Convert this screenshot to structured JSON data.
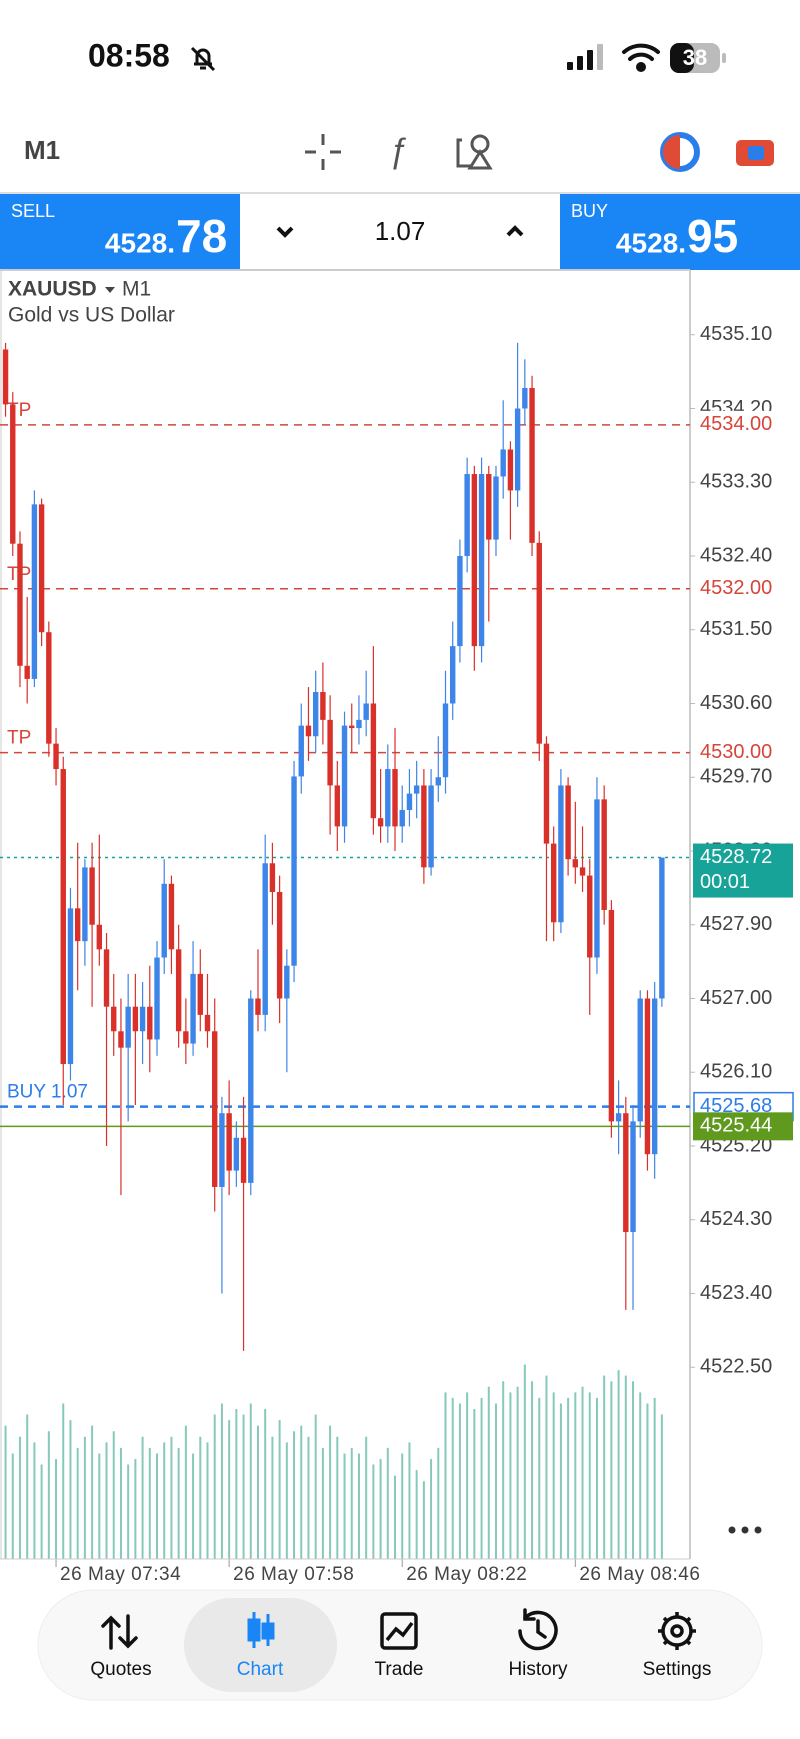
{
  "status_bar": {
    "time": "08:58",
    "battery": "38"
  },
  "toolbar": {
    "timeframe": "M1"
  },
  "trade_panel": {
    "sell": {
      "label": "SELL",
      "price_head": "4528.",
      "price_tail": "78"
    },
    "volume": "1.07",
    "buy": {
      "label": "BUY",
      "price_head": "4528.",
      "price_tail": "95"
    }
  },
  "chart_data": {
    "type": "candlestick",
    "symbol": "XAUUSD",
    "timeframe": "M1",
    "description": "Gold vs US Dollar",
    "open": [
      4534.92,
      4534.25,
      4532.55,
      4531.06,
      4530.9,
      4533.03,
      4531.47,
      4530.11,
      4529.8,
      4526.2,
      4528.1,
      4527.7,
      4528.6,
      4527.9,
      4527.6,
      4526.9,
      4526.6,
      4526.4,
      4526.9,
      4526.6,
      4526.9,
      4526.5,
      4527.5,
      4528.4,
      4527.6,
      4526.6,
      4526.45,
      4527.3,
      4526.8,
      4526.6,
      4524.7,
      4525.6,
      4524.9,
      4525.3,
      4524.75,
      4527.0,
      4526.8,
      4528.65,
      4528.3,
      4527.0,
      4527.4,
      4529.71,
      4530.33,
      4530.2,
      4530.74,
      4530.4,
      4529.6,
      4529.1,
      4530.33,
      4530.3,
      4530.4,
      4530.6,
      4529.2,
      4529.1,
      4529.8,
      4529.1,
      4529.3,
      4529.5,
      4529.6,
      4528.6,
      4529.6,
      4529.7,
      4530.6,
      4531.3,
      4532.4,
      4533.4,
      4531.3,
      4533.4,
      4532.6,
      4533.37,
      4533.7,
      4533.2,
      4534.2,
      4534.45,
      4532.56,
      4530.11,
      4528.89,
      4527.93,
      4529.6,
      4528.7,
      4528.6,
      4528.5,
      4527.5,
      4529.43,
      4528.08,
      4525.5,
      4525.6,
      4524.15,
      4525.5,
      4527.0,
      4525.1,
      4527.0
    ],
    "high": [
      4535.0,
      4534.4,
      4532.7,
      4531.9,
      4533.2,
      4533.1,
      4531.6,
      4530.3,
      4529.95,
      4528.35,
      4528.9,
      4528.7,
      4528.9,
      4529.0,
      4527.8,
      4527.3,
      4527.0,
      4527.3,
      4527.3,
      4527.2,
      4527.4,
      4527.7,
      4528.7,
      4528.5,
      4527.9,
      4527.0,
      4527.7,
      4527.6,
      4527.3,
      4527.0,
      4525.8,
      4526.0,
      4525.5,
      4525.8,
      4527.1,
      4527.6,
      4529.0,
      4528.9,
      4528.5,
      4527.6,
      4529.9,
      4530.6,
      4530.8,
      4531.0,
      4531.1,
      4530.7,
      4529.9,
      4530.5,
      4530.6,
      4530.7,
      4531.0,
      4531.3,
      4529.8,
      4530.1,
      4530.3,
      4529.6,
      4529.8,
      4529.9,
      4529.8,
      4529.8,
      4530.2,
      4531.0,
      4531.6,
      4532.6,
      4533.6,
      4533.5,
      4533.6,
      4533.5,
      4533.5,
      4534.3,
      4533.8,
      4535.0,
      4534.8,
      4534.6,
      4532.7,
      4530.2,
      4529.1,
      4529.8,
      4529.7,
      4529.4,
      4529.1,
      4528.7,
      4529.7,
      4529.6,
      4528.2,
      4526.0,
      4525.8,
      4525.7,
      4527.1,
      4527.1,
      4527.2,
      4528.72
    ],
    "low": [
      4534.1,
      4532.4,
      4530.8,
      4530.6,
      4530.8,
      4531.3,
      4529.95,
      4529.6,
      4525.7,
      4526.0,
      4527.1,
      4527.4,
      4526.9,
      4527.4,
      4525.2,
      4526.3,
      4524.6,
      4525.5,
      4525.7,
      4526.2,
      4526.1,
      4526.3,
      4527.3,
      4527.3,
      4526.4,
      4526.2,
      4526.3,
      4526.6,
      4526.4,
      4524.4,
      4523.4,
      4524.6,
      4524.7,
      4522.7,
      4524.6,
      4526.6,
      4526.6,
      4527.9,
      4526.7,
      4526.1,
      4527.2,
      4529.5,
      4529.9,
      4530.0,
      4530.1,
      4529.0,
      4528.8,
      4528.9,
      4530.0,
      4530.1,
      4530.2,
      4529.0,
      4528.9,
      4528.9,
      4528.8,
      4528.9,
      4529.1,
      4529.2,
      4528.4,
      4528.5,
      4529.4,
      4529.5,
      4530.4,
      4531.1,
      4532.2,
      4531.0,
      4531.1,
      4531.6,
      4532.4,
      4533.1,
      4532.6,
      4533.0,
      4534.0,
      4532.4,
      4529.9,
      4527.7,
      4527.7,
      4527.8,
      4528.5,
      4528.4,
      4528.3,
      4526.8,
      4527.3,
      4527.9,
      4525.3,
      4525.1,
      4523.2,
      4523.2,
      4525.3,
      4524.9,
      4524.8,
      4526.9
    ],
    "close": [
      4534.25,
      4532.55,
      4531.06,
      4530.9,
      4533.03,
      4531.47,
      4530.11,
      4529.8,
      4526.2,
      4528.1,
      4527.7,
      4528.6,
      4527.9,
      4527.6,
      4526.9,
      4526.6,
      4526.4,
      4526.9,
      4526.6,
      4526.9,
      4526.5,
      4527.5,
      4528.4,
      4527.6,
      4526.6,
      4526.45,
      4527.3,
      4526.8,
      4526.6,
      4524.7,
      4525.6,
      4524.9,
      4525.3,
      4524.75,
      4527.0,
      4526.8,
      4528.65,
      4528.3,
      4527.0,
      4527.4,
      4529.71,
      4530.33,
      4530.2,
      4530.74,
      4530.4,
      4529.6,
      4529.1,
      4530.33,
      4530.3,
      4530.4,
      4530.6,
      4529.2,
      4529.1,
      4529.8,
      4529.1,
      4529.3,
      4529.5,
      4529.6,
      4528.6,
      4529.6,
      4529.7,
      4530.6,
      4531.3,
      4532.4,
      4533.4,
      4531.3,
      4533.4,
      4532.6,
      4533.37,
      4533.7,
      4533.2,
      4534.2,
      4534.45,
      4532.56,
      4530.11,
      4528.89,
      4527.93,
      4529.6,
      4528.7,
      4528.6,
      4528.5,
      4527.5,
      4529.43,
      4528.08,
      4525.5,
      4525.6,
      4524.15,
      4525.5,
      4527.0,
      4525.1,
      4527.0,
      4528.72
    ],
    "volume": [
      120,
      95,
      110,
      130,
      105,
      85,
      115,
      90,
      140,
      125,
      100,
      110,
      120,
      95,
      105,
      115,
      100,
      85,
      90,
      110,
      100,
      95,
      105,
      110,
      100,
      120,
      95,
      110,
      105,
      130,
      140,
      125,
      135,
      130,
      140,
      120,
      135,
      110,
      125,
      105,
      115,
      120,
      110,
      130,
      100,
      120,
      110,
      95,
      100,
      95,
      110,
      85,
      90,
      100,
      75,
      95,
      105,
      80,
      70,
      90,
      100,
      150,
      145,
      140,
      150,
      135,
      145,
      155,
      140,
      160,
      150,
      155,
      175,
      160,
      145,
      165,
      150,
      140,
      145,
      150,
      155,
      150,
      145,
      165,
      160,
      170,
      165,
      160,
      150,
      140,
      145,
      130
    ],
    "colors": {
      "up": "#3d85e8",
      "down": "#d9302a",
      "volume": "#86c9bb"
    },
    "ylim": [
      4520.16,
      4535.89
    ],
    "yticks": [
      {
        "value": 4535.1,
        "label": "4535.10"
      },
      {
        "value": 4534.2,
        "label": "4534.20"
      },
      {
        "value": 4533.3,
        "label": "4533.30"
      },
      {
        "value": 4532.4,
        "label": "4532.40"
      },
      {
        "value": 4531.5,
        "label": "4531.50"
      },
      {
        "value": 4530.6,
        "label": "4530.60"
      },
      {
        "value": 4529.7,
        "label": "4529.70"
      },
      {
        "value": 4528.8,
        "label": "4528.80"
      },
      {
        "value": 4527.9,
        "label": "4527.90"
      },
      {
        "value": 4527,
        "label": "4527.00"
      },
      {
        "value": 4526.1,
        "label": "4526.10"
      },
      {
        "value": 4525.2,
        "label": "4525.20"
      },
      {
        "value": 4524.3,
        "label": "4524.30"
      },
      {
        "value": 4523.4,
        "label": "4523.40"
      },
      {
        "value": 4522.5,
        "label": "4522.50"
      }
    ],
    "xlim": [
      -0.77,
      94.9
    ],
    "xticks": [
      {
        "value": 7,
        "label": "26 May 07:34"
      },
      {
        "value": 31,
        "label": "26 May 07:58"
      },
      {
        "value": 55,
        "label": "26 May 08:22"
      },
      {
        "value": 79,
        "label": "26 May 08:46"
      }
    ],
    "volume_lim": [
      0,
      180
    ],
    "grid": false,
    "levels": [
      {
        "text": "TP",
        "price": {
          "value": 4534,
          "label": "4534.00"
        },
        "color": "#d6453a",
        "style": "dashed",
        "box": "none"
      },
      {
        "text": "TP",
        "price": {
          "value": 4532,
          "label": "4532.00"
        },
        "color": "#d6453a",
        "style": "dashed",
        "box": "none"
      },
      {
        "text": "TP",
        "price": {
          "value": 4530,
          "label": "4530.00"
        },
        "color": "#d6453a",
        "style": "dashed",
        "box": "none"
      },
      {
        "text": "BUY 1.07",
        "price": 4525.68,
        "color": "#2b7de9",
        "style": "dashed",
        "box": "outline"
      },
      {
        "price": 4525.44,
        "color": "#5f9a1f",
        "style": "solid",
        "box": "filled"
      },
      {
        "price": 4528.72,
        "timer": "00:01",
        "color": "#17a398",
        "style": "dotted",
        "box": "filled"
      }
    ]
  },
  "nav": {
    "items": [
      "Quotes",
      "Chart",
      "Trade",
      "History",
      "Settings"
    ],
    "active": 1
  }
}
